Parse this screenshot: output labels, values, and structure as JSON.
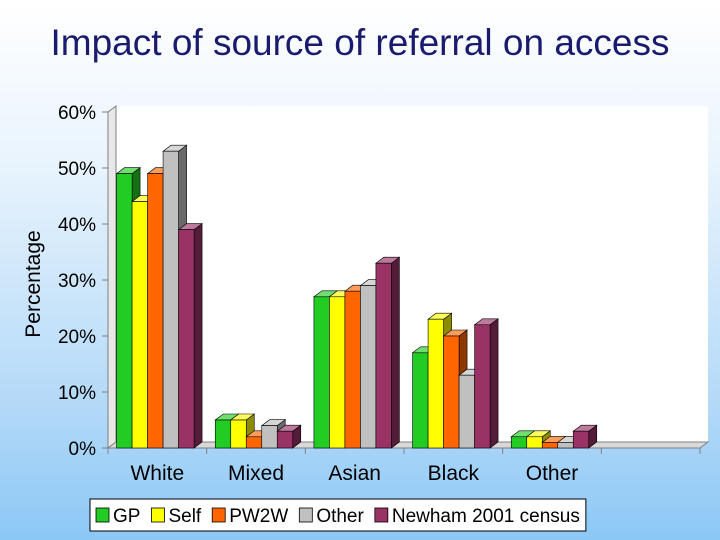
{
  "title": "Impact of source of referral on access",
  "chart_data": {
    "type": "bar",
    "title": "Impact of source of referral on access",
    "xlabel": "",
    "ylabel": "Percentage",
    "ylim": [
      0,
      60
    ],
    "yticks": [
      "0%",
      "10%",
      "20%",
      "30%",
      "40%",
      "50%",
      "60%"
    ],
    "categories": [
      "White",
      "Mixed",
      "Asian",
      "Black",
      "Other"
    ],
    "series": [
      {
        "name": "GP",
        "color": "#22cc22",
        "values": [
          49,
          5,
          27,
          17,
          2
        ]
      },
      {
        "name": "Self",
        "color": "#ffff00",
        "values": [
          44,
          5,
          27,
          23,
          2
        ]
      },
      {
        "name": "PW2W",
        "color": "#ff6600",
        "values": [
          49,
          2,
          28,
          20,
          1
        ]
      },
      {
        "name": "Other",
        "color": "#c0c0c0",
        "values": [
          53,
          4,
          29,
          13,
          1
        ]
      },
      {
        "name": "Newham 2001 census",
        "color": "#993366",
        "values": [
          39,
          3,
          33,
          22,
          3
        ]
      }
    ],
    "grid": false,
    "legend": "bottom",
    "style": "3d-bar"
  }
}
